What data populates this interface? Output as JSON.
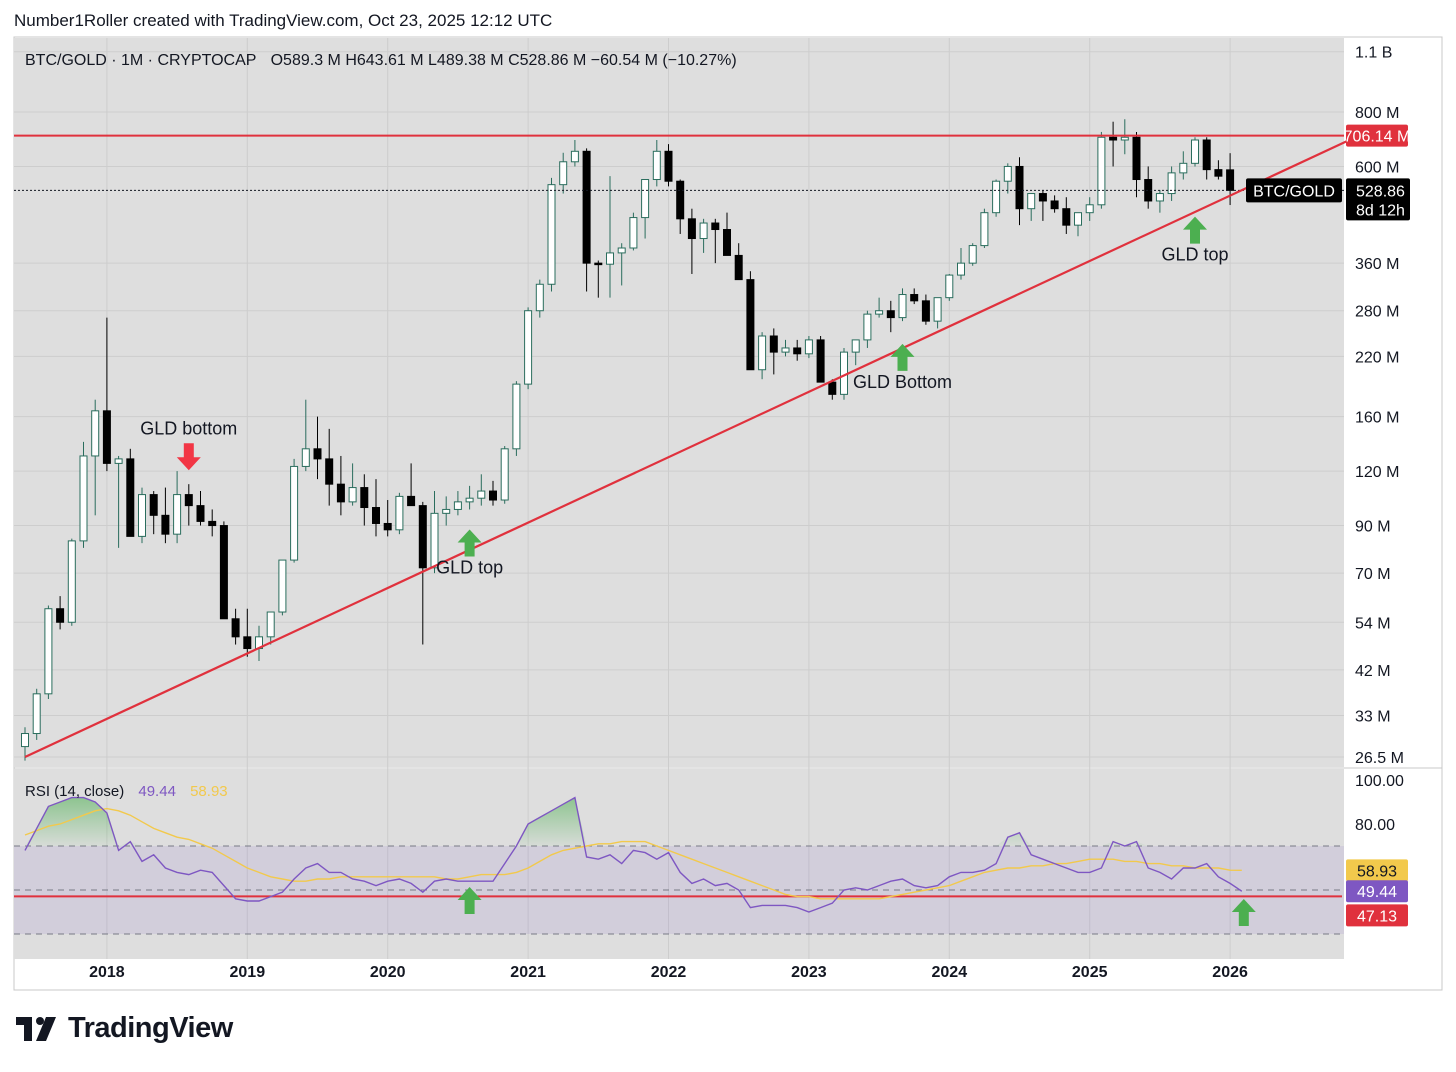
{
  "header": {
    "credit": "Number1Roller created with TradingView.com, Oct 23, 2025 12:12 UTC"
  },
  "legend": {
    "symbol": "BTC/GOLD · 1M · CRYPTOCAP",
    "ohlc": "O589.3 M   H643.61 M   L489.38 M   C528.86 M   −60.54 M (−10.27%)"
  },
  "brand": {
    "name": "TradingView",
    "logo_icon": "tradingview-logo-icon"
  },
  "colors": {
    "up_body": "#ffffff",
    "up_border": "#2a6d5d",
    "down": "#000000",
    "line": "#e0313d",
    "arrow_green": "#4caf50",
    "arrow_red": "#f23645",
    "rsi": "#7e57c2",
    "rsi_ma": "#f2c94c",
    "pane_bg": "#dedede"
  },
  "chart_data": [
    {
      "type": "candlestick",
      "title": "BTC/GOLD · 1M · CRYPTOCAP",
      "scale": "log",
      "ylim": [
        25000000,
        1150000000
      ],
      "y_ticks": [
        "1.1 B",
        "800 M",
        "600 M",
        "360 M",
        "280 M",
        "220 M",
        "160 M",
        "120 M",
        "90 M",
        "70 M",
        "54 M",
        "42 M",
        "33 M",
        "26.5 M"
      ],
      "y_tick_values": [
        1100,
        800,
        600,
        360,
        280,
        220,
        160,
        120,
        90,
        70,
        54,
        42,
        33,
        26.5
      ],
      "y_unit": "M",
      "x_ticks": [
        "2018",
        "2019",
        "2020",
        "2021",
        "2022",
        "2023",
        "2024",
        "2025",
        "2026"
      ],
      "x_start": "2017-06",
      "candles_ohlc_millions": [
        [
          28,
          31,
          26,
          30
        ],
        [
          30,
          38,
          29,
          37
        ],
        [
          37,
          59,
          36,
          58
        ],
        [
          58,
          62,
          52,
          54
        ],
        [
          54,
          84,
          53,
          83
        ],
        [
          83,
          140,
          80,
          130
        ],
        [
          130,
          175,
          95,
          165
        ],
        [
          165,
          270,
          120,
          125
        ],
        [
          125,
          130,
          80,
          128
        ],
        [
          128,
          135,
          85,
          85
        ],
        [
          85,
          110,
          82,
          106
        ],
        [
          106,
          108,
          86,
          95
        ],
        [
          95,
          110,
          82,
          86
        ],
        [
          86,
          120,
          82,
          106
        ],
        [
          106,
          112,
          90,
          100
        ],
        [
          100,
          108,
          90,
          92
        ],
        [
          92,
          98,
          85,
          90
        ],
        [
          90,
          92,
          55,
          55
        ],
        [
          55,
          58,
          48,
          50
        ],
        [
          50,
          58,
          45,
          47
        ],
        [
          47,
          53,
          44,
          50
        ],
        [
          50,
          57,
          48,
          57
        ],
        [
          57,
          75,
          56,
          75
        ],
        [
          75,
          128,
          74,
          123
        ],
        [
          123,
          175,
          120,
          135
        ],
        [
          135,
          160,
          115,
          128
        ],
        [
          128,
          150,
          100,
          112
        ],
        [
          112,
          130,
          95,
          102
        ],
        [
          102,
          125,
          100,
          110
        ],
        [
          110,
          118,
          90,
          99
        ],
        [
          99,
          115,
          85,
          91
        ],
        [
          91,
          103,
          85,
          88
        ],
        [
          88,
          107,
          86,
          105
        ],
        [
          105,
          125,
          100,
          100
        ],
        [
          100,
          102,
          48,
          72
        ],
        [
          72,
          108,
          70,
          96
        ],
        [
          96,
          105,
          90,
          98
        ],
        [
          98,
          108,
          95,
          102
        ],
        [
          102,
          111,
          98,
          104
        ],
        [
          104,
          118,
          100,
          108
        ],
        [
          108,
          114,
          100,
          103
        ],
        [
          103,
          137,
          101,
          135
        ],
        [
          135,
          193,
          130,
          190
        ],
        [
          190,
          285,
          185,
          280
        ],
        [
          280,
          330,
          270,
          322
        ],
        [
          322,
          565,
          310,
          545
        ],
        [
          545,
          645,
          520,
          615
        ],
        [
          615,
          690,
          600,
          650
        ],
        [
          650,
          660,
          310,
          360
        ],
        [
          360,
          365,
          300,
          358
        ],
        [
          358,
          570,
          300,
          380
        ],
        [
          380,
          400,
          320,
          390
        ],
        [
          390,
          470,
          385,
          458
        ],
        [
          458,
          560,
          410,
          560
        ],
        [
          560,
          690,
          540,
          650
        ],
        [
          650,
          675,
          540,
          555
        ],
        [
          555,
          560,
          420,
          455
        ],
        [
          455,
          480,
          340,
          410
        ],
        [
          410,
          455,
          380,
          445
        ],
        [
          445,
          455,
          360,
          430
        ],
        [
          430,
          470,
          385,
          375
        ],
        [
          375,
          400,
          330,
          330
        ],
        [
          330,
          345,
          210,
          205
        ],
        [
          205,
          250,
          195,
          245
        ],
        [
          245,
          255,
          200,
          225
        ],
        [
          225,
          240,
          220,
          230
        ],
        [
          230,
          240,
          215,
          223
        ],
        [
          223,
          245,
          218,
          240
        ],
        [
          240,
          245,
          195,
          192
        ],
        [
          192,
          195,
          175,
          180
        ],
        [
          180,
          230,
          175,
          225
        ],
        [
          225,
          240,
          210,
          240
        ],
        [
          240,
          280,
          230,
          275
        ],
        [
          275,
          300,
          270,
          280
        ],
        [
          280,
          295,
          250,
          270
        ],
        [
          270,
          315,
          265,
          305
        ],
        [
          305,
          315,
          290,
          295
        ],
        [
          295,
          305,
          260,
          265
        ],
        [
          265,
          300,
          255,
          300
        ],
        [
          300,
          340,
          295,
          338
        ],
        [
          338,
          390,
          330,
          360
        ],
        [
          360,
          400,
          355,
          395
        ],
        [
          395,
          480,
          390,
          470
        ],
        [
          470,
          560,
          460,
          555
        ],
        [
          555,
          610,
          520,
          600
        ],
        [
          600,
          630,
          440,
          480
        ],
        [
          480,
          515,
          450,
          520
        ],
        [
          520,
          530,
          450,
          500
        ],
        [
          500,
          515,
          470,
          480
        ],
        [
          480,
          510,
          420,
          440
        ],
        [
          440,
          460,
          415,
          470
        ],
        [
          470,
          510,
          450,
          490
        ],
        [
          490,
          720,
          480,
          700
        ],
        [
          700,
          760,
          600,
          690
        ],
        [
          690,
          770,
          640,
          700
        ],
        [
          700,
          720,
          510,
          560
        ],
        [
          560,
          600,
          480,
          500
        ],
        [
          500,
          530,
          470,
          520
        ],
        [
          520,
          600,
          500,
          580
        ],
        [
          580,
          650,
          560,
          610
        ],
        [
          610,
          700,
          600,
          690
        ],
        [
          690,
          700,
          560,
          590
        ],
        [
          590,
          620,
          560,
          570
        ],
        [
          589.3,
          643.61,
          489.38,
          528.86
        ]
      ],
      "price_levels": [
        {
          "label": "706.14 M",
          "value": 706.14
        },
        {
          "label": "528.86 M",
          "value": 528.86,
          "name": "BTC/GOLD",
          "countdown": "8d 12h"
        }
      ],
      "trendline_points": [
        [
          "2017-06",
          26.5
        ],
        [
          "2026-12",
          706.14
        ]
      ],
      "annotations": [
        {
          "text": "GLD bottom",
          "arrow": "down",
          "color": "red",
          "date": "2018-08",
          "value": 118
        },
        {
          "text": "GLD top",
          "arrow": "up",
          "color": "green",
          "date": "2020-08",
          "value": 90
        },
        {
          "text": "GLD Bottom",
          "arrow": "up",
          "color": "green",
          "date": "2023-09",
          "value": 240
        },
        {
          "text": "GLD top",
          "arrow": "up",
          "color": "green",
          "date": "2025-10",
          "value": 470
        }
      ]
    },
    {
      "type": "line",
      "title": "RSI (14, close)",
      "ylim": [
        15,
        100
      ],
      "y_ticks": [
        "100.00",
        "80.00"
      ],
      "y_tick_values": [
        100,
        80
      ],
      "bands": [
        70,
        50,
        30
      ],
      "hline": {
        "value": 47.13,
        "label": "47.13"
      },
      "series": [
        {
          "name": "RSI",
          "value_label": "49.44",
          "last": 49.44,
          "values": [
            68,
            78,
            88,
            90,
            92,
            92,
            90,
            85,
            68,
            72,
            63,
            66,
            60,
            58,
            57,
            59,
            58,
            52,
            46,
            45,
            45,
            47,
            49,
            55,
            60,
            62,
            58,
            58,
            55,
            54,
            52,
            54,
            55,
            53,
            49,
            54,
            55,
            54,
            54,
            54,
            54,
            62,
            70,
            80,
            83,
            86,
            89,
            92,
            65,
            64,
            66,
            62,
            68,
            67,
            64,
            67,
            58,
            53,
            55,
            52,
            53,
            50,
            42,
            43,
            43,
            43,
            42,
            40,
            42,
            44,
            50,
            51,
            50,
            52,
            54,
            55,
            52,
            51,
            52,
            56,
            58,
            58,
            59,
            62,
            74,
            76,
            66,
            64,
            62,
            60,
            58,
            58,
            60,
            72,
            70,
            72,
            60,
            58,
            55,
            60,
            60,
            62,
            56,
            53,
            49.44
          ]
        },
        {
          "name": "RSI-based MA",
          "value_label": "58.93",
          "last": 58.93,
          "values": [
            75,
            77,
            79,
            80,
            82,
            84,
            86,
            87,
            86,
            84,
            81,
            78,
            76,
            74,
            73,
            71,
            69,
            66,
            63,
            60,
            58,
            56,
            55,
            54,
            54,
            55,
            55,
            56,
            56,
            56,
            56,
            56,
            56,
            56,
            56,
            56,
            55,
            55,
            56,
            57,
            57,
            57,
            58,
            60,
            63,
            66,
            68,
            69,
            70,
            71,
            71,
            72,
            72,
            72,
            70,
            68,
            66,
            64,
            62,
            60,
            58,
            56,
            54,
            52,
            50,
            48,
            47,
            47,
            46,
            46,
            46,
            46,
            46,
            46,
            47,
            48,
            49,
            50,
            51,
            52,
            54,
            56,
            58,
            59,
            60,
            60,
            61,
            61,
            62,
            62,
            63,
            64,
            64,
            64,
            63,
            63,
            62,
            62,
            61,
            61,
            60,
            60,
            60,
            59,
            58.93
          ]
        }
      ]
    }
  ]
}
